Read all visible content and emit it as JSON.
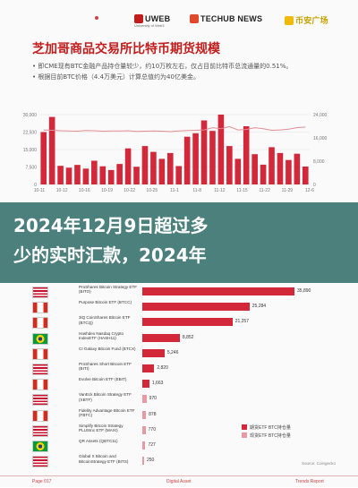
{
  "header": {
    "logos": [
      "UWEB",
      "TECHUB NEWS",
      "币安广场"
    ],
    "uweb_sub": "University of Web3"
  },
  "title": "芝加哥商品交易所比特币期货规模",
  "bullets": [
    "• 即CME现有BTC金融产品持仓量较少，约10万枚左右，仅占目前比特币总流通量的0.51%。",
    "• 根据目前BTC价格（4.4万美元）计算总值约为40亿美金。"
  ],
  "chart_data": [
    {
      "type": "bar",
      "title": "",
      "left_axis_ticks": [
        "0",
        "7,500",
        "15,000",
        "22,500",
        "30,000"
      ],
      "right_axis_ticks": [
        "0",
        "8,000",
        "16,000",
        "24,000"
      ],
      "ylim": [
        0,
        30000
      ],
      "values": [
        22500,
        29000,
        8000,
        7200,
        8400,
        6800,
        10200,
        7800,
        6200,
        8800,
        15500,
        7600,
        16500,
        14000,
        11000,
        13500,
        7900,
        20500,
        22000,
        27500,
        23000,
        30500,
        16500,
        11000,
        25000,
        13000,
        8500,
        16000,
        13500,
        10500,
        13200,
        7700
      ],
      "line_values": [
        25000,
        24800,
        24600,
        24500,
        24400,
        24700,
        24600,
        24400,
        24500,
        24500,
        24600,
        24300,
        24400,
        24500,
        24400,
        24200,
        24500,
        24700,
        24800,
        25000,
        26000,
        25500,
        26500,
        25000,
        25200,
        26000,
        25500,
        24800,
        25000,
        25300,
        26000,
        26300
      ],
      "x_ticks": [
        "10-11",
        "10-12",
        "10-16",
        "10-19",
        "10-22",
        "10-25",
        "11-1",
        "11-8",
        "11-12",
        "11-15",
        "11-22",
        "11-29",
        "12-6"
      ]
    },
    {
      "type": "bar",
      "categories": [
        "ProShares Bitcoin Strategy ETF (BITO)",
        "Purpose Bitcoin ETF (BTCC)",
        "3iQ CoinShares Bitcoin ETF (BTCQ)",
        "Hashdex Nasdaq Crypto IndexETF (HASH11)",
        "CI Galaxy Bitcoin Fund (BTCX)",
        "ProShares Short Bitcoin ETF (BITI)",
        "Evolve Bitcoin ETF (EBIT)",
        "VanEck Bitcoin Strategy ETF (XBTF)",
        "Fidelity Advantage Bitcoin ETF (FBTC)",
        "Simplify Bitcoin Strategy PLUSInc ETF (MAXI)",
        "QR Assets (QBTC11)",
        "Global X Bitcoin and BitcoinStrategy ETF (BITS)"
      ],
      "values": [
        35890,
        25284,
        21257,
        8852,
        5246,
        2820,
        1663,
        970,
        878,
        770,
        727,
        250
      ],
      "value_labels": [
        "35,890",
        "25,284",
        "21,257",
        "8,852",
        "5,246",
        "2,820",
        "1,663",
        "970",
        "878",
        "770",
        "727",
        "250"
      ],
      "legend": [
        "期货ETF BTC持仓量",
        "现货ETF BTC持仓量"
      ],
      "source": "Source: Coingecko"
    }
  ],
  "headline": "2024年12月9日超过多少的实时汇款，2024年",
  "headline_lines": [
    "2024年12月9日超过多",
    "少的实时汇款，2024年"
  ],
  "footer": {
    "left": "Page 017",
    "center": "Digital Asset",
    "right": "Trends Report"
  },
  "colors": {
    "accent": "#d2283a",
    "title": "#c11d1d",
    "overlay": "#1a5e5a",
    "line": "#e58c96"
  }
}
